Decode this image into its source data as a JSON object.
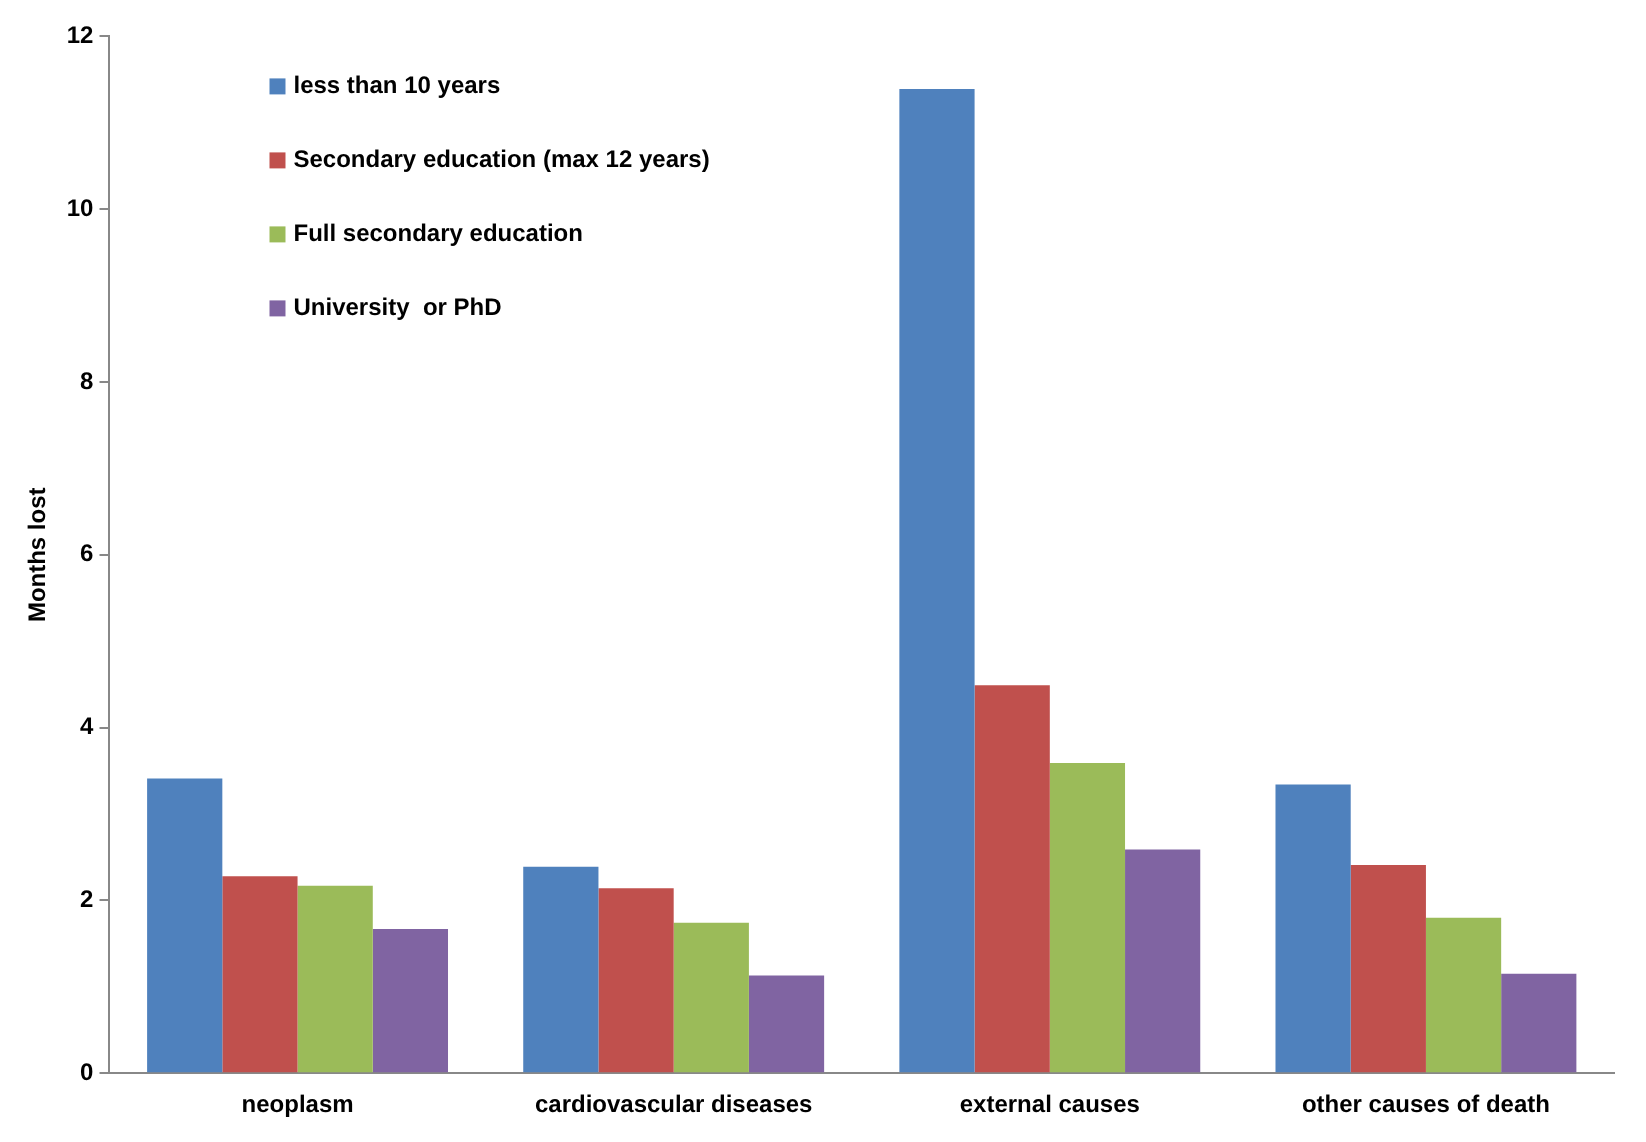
{
  "chart_data": {
    "type": "bar",
    "ylabel": "Months lost",
    "categories": [
      "neoplasm",
      "cardiovascular diseases",
      "external causes",
      "other causes of death"
    ],
    "series": [
      {
        "name": "less than 10 years",
        "color": "#4f81bd",
        "values": [
          3.41,
          2.39,
          11.39,
          3.34
        ]
      },
      {
        "name": "Secondary education (max 12 years)",
        "color": "#c0504d",
        "values": [
          2.28,
          2.14,
          4.49,
          2.41
        ]
      },
      {
        "name": "Full secondary education",
        "color": "#9bbb59",
        "values": [
          2.17,
          1.74,
          3.59,
          1.8
        ]
      },
      {
        "name": "University  or PhD",
        "color": "#8064a2",
        "values": [
          1.67,
          1.13,
          2.59,
          1.15
        ]
      }
    ],
    "ylim": [
      0,
      12
    ],
    "yticks": [
      0,
      2,
      4,
      6,
      8,
      10,
      12
    ],
    "grid": false,
    "legend": "top left"
  }
}
